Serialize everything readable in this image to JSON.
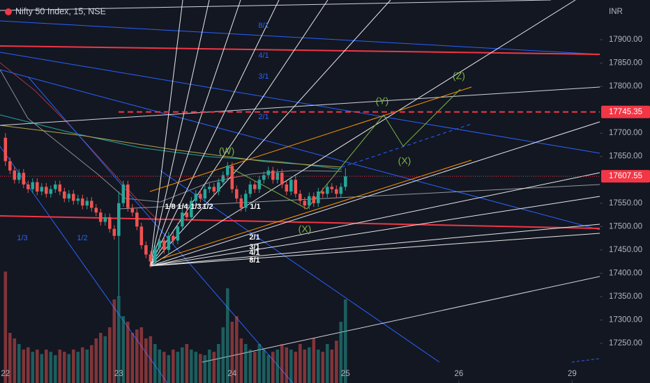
{
  "chart_data": {
    "type": "candlestick",
    "title": "Nifty 50 Index, 15, NSE",
    "axis_unit": "INR",
    "xlim": [
      -1.2,
      131.1
    ],
    "xticks": [
      {
        "value": 0,
        "label": "22"
      },
      {
        "value": 25,
        "label": "23"
      },
      {
        "value": 50,
        "label": "24"
      },
      {
        "value": 75,
        "label": "25"
      },
      {
        "value": 100,
        "label": "26"
      },
      {
        "value": 125,
        "label": "29"
      }
    ],
    "ylim": [
      17165,
      17985
    ],
    "yticks": [
      {
        "value": 17900,
        "label": "17900.00"
      },
      {
        "value": 17850,
        "label": "17850.00"
      },
      {
        "value": 17800,
        "label": "17800.00"
      },
      {
        "value": 17700,
        "label": "17700.00"
      },
      {
        "value": 17650,
        "label": "17650.00"
      },
      {
        "value": 17550,
        "label": "17550.00"
      },
      {
        "value": 17500,
        "label": "17500.00"
      },
      {
        "value": 17450,
        "label": "17450.00"
      },
      {
        "value": 17400,
        "label": "17400.00"
      },
      {
        "value": 17350,
        "label": "17350.00"
      },
      {
        "value": 17300,
        "label": "17300.00"
      },
      {
        "value": 17250,
        "label": "17250.00"
      }
    ],
    "up_color": "#26a69a",
    "down_color": "#ef5350",
    "open": [
      17690,
      17640,
      17620,
      17600,
      17615,
      17590,
      17580,
      17595,
      17575,
      17585,
      17570,
      17580,
      17590,
      17575,
      17560,
      17570,
      17555,
      17560,
      17545,
      17555,
      17540,
      17530,
      17510,
      17520,
      17495,
      17480,
      17550,
      17590,
      17540,
      17530,
      17500,
      17460,
      17440,
      17425,
      17455,
      17470,
      17450,
      17480,
      17470,
      17500,
      17530,
      17520,
      17555,
      17570,
      17560,
      17580,
      17585,
      17575,
      17595,
      17610,
      17630,
      17580,
      17560,
      17540,
      17570,
      17590,
      17580,
      17600,
      17610,
      17620,
      17600,
      17615,
      17590,
      17575,
      17600,
      17570,
      17555,
      17545,
      17565,
      17550,
      17575,
      17570,
      17585,
      17580,
      17570,
      17585
    ],
    "high": [
      17700,
      17648,
      17628,
      17623,
      17623,
      17598,
      17603,
      17603,
      17593,
      17593,
      17588,
      17598,
      17598,
      17583,
      17578,
      17578,
      17568,
      17568,
      17563,
      17563,
      17548,
      17538,
      17528,
      17528,
      17503,
      17575,
      17598,
      17598,
      17548,
      17538,
      17508,
      17468,
      17448,
      17463,
      17478,
      17478,
      17488,
      17488,
      17508,
      17538,
      17538,
      17563,
      17578,
      17578,
      17588,
      17593,
      17593,
      17603,
      17618,
      17638,
      17638,
      17588,
      17568,
      17578,
      17598,
      17598,
      17608,
      17618,
      17628,
      17628,
      17623,
      17623,
      17598,
      17608,
      17608,
      17578,
      17563,
      17573,
      17573,
      17583,
      17583,
      17593,
      17593,
      17588,
      17593,
      17625
    ],
    "low": [
      17630,
      17612,
      17592,
      17592,
      17582,
      17572,
      17572,
      17567,
      17567,
      17562,
      17562,
      17572,
      17567,
      17552,
      17552,
      17547,
      17547,
      17537,
      17537,
      17532,
      17522,
      17502,
      17502,
      17487,
      17472,
      17350,
      17542,
      17532,
      17522,
      17492,
      17452,
      17432,
      17412,
      17417,
      17447,
      17442,
      17442,
      17462,
      17462,
      17492,
      17512,
      17512,
      17547,
      17552,
      17552,
      17572,
      17567,
      17567,
      17587,
      17602,
      17572,
      17552,
      17532,
      17532,
      17562,
      17572,
      17572,
      17592,
      17602,
      17592,
      17592,
      17582,
      17567,
      17567,
      17562,
      17547,
      17537,
      17537,
      17542,
      17542,
      17562,
      17562,
      17572,
      17562,
      17562,
      17577
    ],
    "close": [
      17640,
      17620,
      17600,
      17615,
      17590,
      17580,
      17595,
      17575,
      17585,
      17570,
      17580,
      17590,
      17575,
      17560,
      17570,
      17555,
      17560,
      17545,
      17555,
      17540,
      17530,
      17510,
      17520,
      17495,
      17480,
      17550,
      17590,
      17540,
      17530,
      17500,
      17460,
      17440,
      17425,
      17455,
      17470,
      17450,
      17480,
      17470,
      17500,
      17530,
      17520,
      17555,
      17570,
      17560,
      17580,
      17585,
      17575,
      17595,
      17610,
      17630,
      17580,
      17560,
      17540,
      17570,
      17590,
      17580,
      17600,
      17610,
      17620,
      17600,
      17615,
      17590,
      17575,
      17600,
      17570,
      17555,
      17545,
      17565,
      17550,
      17575,
      17570,
      17585,
      17580,
      17570,
      17585,
      17607.55
    ],
    "volume_lim": [
      0,
      100
    ],
    "volume": [
      100,
      45,
      40,
      35,
      30,
      32,
      28,
      30,
      26,
      30,
      28,
      25,
      30,
      28,
      26,
      30,
      28,
      32,
      30,
      34,
      40,
      45,
      42,
      50,
      75,
      78,
      60,
      55,
      45,
      48,
      50,
      40,
      42,
      35,
      30,
      28,
      25,
      30,
      28,
      32,
      35,
      30,
      28,
      26,
      25,
      30,
      28,
      35,
      50,
      85,
      55,
      60,
      40,
      35,
      30,
      28,
      35,
      30,
      25,
      28,
      30,
      35,
      32,
      30,
      28,
      35,
      30,
      32,
      40,
      30,
      28,
      35,
      30,
      38,
      55,
      75
    ],
    "price_lines": [
      {
        "value": 17745.35,
        "color": "#f23645",
        "dashed": true
      },
      {
        "value": 17607.55,
        "color": "#f23645",
        "dashed": false
      }
    ],
    "fan_labels_blue": [
      "8/1",
      "4/1",
      "3/1",
      "2/1",
      "1/3",
      "1/2"
    ],
    "fan_labels_white": [
      "1/8",
      "1/4",
      "1/3",
      "1/2",
      "1/1",
      "2/1",
      "3/1",
      "4/1",
      "8/1"
    ],
    "wave_labels": [
      "(W)",
      "(X)",
      "(Y)",
      "(X)",
      "(Z)"
    ]
  }
}
